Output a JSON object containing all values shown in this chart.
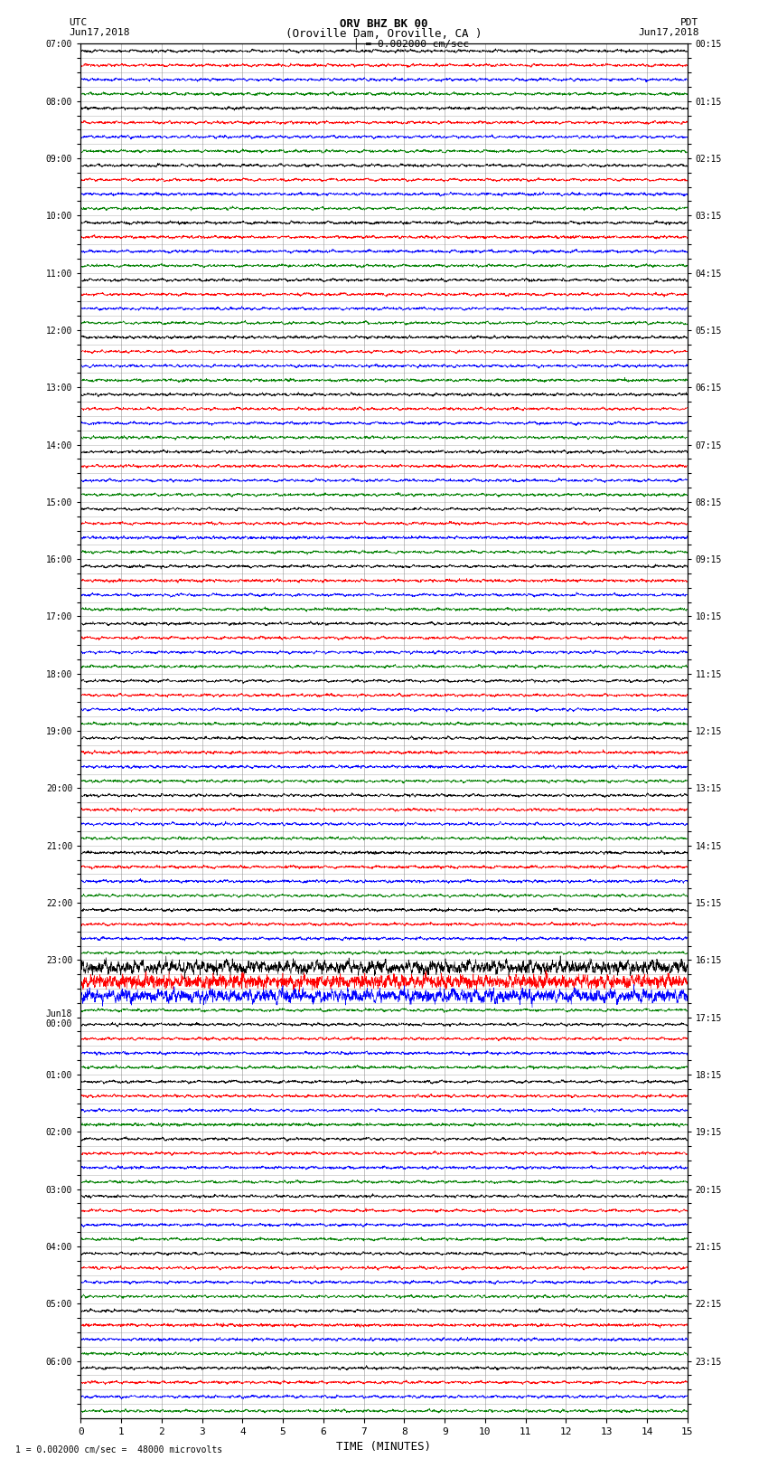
{
  "title_line1": "ORV BHZ BK 00",
  "title_line2": "(Oroville Dam, Oroville, CA )",
  "scale_label": "= 0.002000 cm/sec",
  "footer_label": "1 = 0.002000 cm/sec =  48000 microvolts",
  "xlabel": "TIME (MINUTES)",
  "left_header": "UTC",
  "left_date": "Jun17,2018",
  "right_header": "PDT",
  "right_date": "Jun17,2018",
  "x_min": 0,
  "x_max": 15,
  "trace_colors": [
    "black",
    "red",
    "blue",
    "green"
  ],
  "background_color": "white",
  "grid_color": "#888888",
  "utc_labels": [
    "07:00",
    "",
    "",
    "",
    "08:00",
    "",
    "",
    "",
    "09:00",
    "",
    "",
    "",
    "10:00",
    "",
    "",
    "",
    "11:00",
    "",
    "",
    "",
    "12:00",
    "",
    "",
    "",
    "13:00",
    "",
    "",
    "",
    "14:00",
    "",
    "",
    "",
    "15:00",
    "",
    "",
    "",
    "16:00",
    "",
    "",
    "",
    "17:00",
    "",
    "",
    "",
    "18:00",
    "",
    "",
    "",
    "19:00",
    "",
    "",
    "",
    "20:00",
    "",
    "",
    "",
    "21:00",
    "",
    "",
    "",
    "22:00",
    "",
    "",
    "",
    "23:00",
    "",
    "",
    "",
    "Jun18\n00:00",
    "",
    "",
    "",
    "01:00",
    "",
    "",
    "",
    "02:00",
    "",
    "",
    "",
    "03:00",
    "",
    "",
    "",
    "04:00",
    "",
    "",
    "",
    "05:00",
    "",
    "",
    "",
    "06:00",
    "",
    "",
    ""
  ],
  "pdt_labels": [
    "00:15",
    "",
    "",
    "",
    "01:15",
    "",
    "",
    "",
    "02:15",
    "",
    "",
    "",
    "03:15",
    "",
    "",
    "",
    "04:15",
    "",
    "",
    "",
    "05:15",
    "",
    "",
    "",
    "06:15",
    "",
    "",
    "",
    "07:15",
    "",
    "",
    "",
    "08:15",
    "",
    "",
    "",
    "09:15",
    "",
    "",
    "",
    "10:15",
    "",
    "",
    "",
    "11:15",
    "",
    "",
    "",
    "12:15",
    "",
    "",
    "",
    "13:15",
    "",
    "",
    "",
    "14:15",
    "",
    "",
    "",
    "15:15",
    "",
    "",
    "",
    "16:15",
    "",
    "",
    "",
    "17:15",
    "",
    "",
    "",
    "18:15",
    "",
    "",
    "",
    "19:15",
    "",
    "",
    "",
    "20:15",
    "",
    "",
    "",
    "21:15",
    "",
    "",
    "",
    "22:15",
    "",
    "",
    "",
    "23:15",
    "",
    "",
    ""
  ],
  "num_rows": 96,
  "noise_amplitude": 0.12,
  "special_rows": [
    64,
    65,
    66
  ],
  "special_amplitude": 0.55
}
